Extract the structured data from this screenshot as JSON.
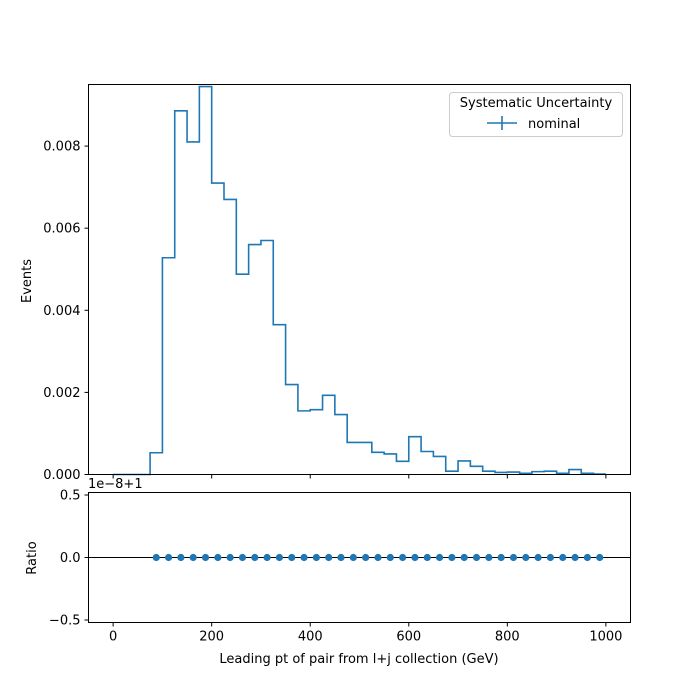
{
  "chart_data": [
    {
      "type": "step",
      "xlabel": "",
      "ylabel": "Events",
      "xlim": [
        -50,
        1050
      ],
      "ylim": [
        0,
        0.0095
      ],
      "x_ticks": [
        0,
        200,
        400,
        600,
        800,
        1000
      ],
      "y_ticks": [
        "0.000",
        "0.002",
        "0.004",
        "0.006",
        "0.008"
      ],
      "y_tick_values": [
        0,
        0.002,
        0.004,
        0.006,
        0.008
      ],
      "bin_width": 25,
      "bin_edges_start": 0,
      "series": [
        {
          "name": "nominal",
          "values": [
            0,
            0,
            0,
            0.00053,
            0.00528,
            0.00886,
            0.0081,
            0.00945,
            0.0071,
            0.0067,
            0.00488,
            0.0056,
            0.0057,
            0.00365,
            0.00219,
            0.00155,
            0.00158,
            0.00193,
            0.00146,
            0.00078,
            0.00078,
            0.00054,
            0.0005,
            0.00032,
            0.00092,
            0.00056,
            0.00044,
            8e-05,
            0.00033,
            0.0002,
            8e-05,
            5e-05,
            6e-05,
            3e-05,
            7e-05,
            8e-05,
            3e-05,
            0.00012,
            3e-05,
            1e-05
          ]
        }
      ],
      "legend": {
        "title": "Systematic Uncertainty",
        "entries": [
          "nominal"
        ],
        "position": "top-right"
      },
      "color": "#1f77b4"
    },
    {
      "type": "scatter",
      "xlabel": "Leading pt of pair from l+j collection (GeV)",
      "ylabel": "Ratio",
      "offset_label": "1e−8+1",
      "xlim": [
        -50,
        1050
      ],
      "ylim": [
        -0.52,
        0.52
      ],
      "x_ticks": [
        0,
        200,
        400,
        600,
        800,
        1000
      ],
      "y_ticks": [
        "−0.5",
        "0.0",
        "0.5"
      ],
      "y_tick_values": [
        -0.5,
        0,
        0.5
      ],
      "reference_line": 0,
      "x": [
        87.5,
        112.5,
        137.5,
        162.5,
        187.5,
        212.5,
        237.5,
        262.5,
        287.5,
        312.5,
        337.5,
        362.5,
        387.5,
        412.5,
        437.5,
        462.5,
        487.5,
        512.5,
        537.5,
        562.5,
        587.5,
        612.5,
        637.5,
        662.5,
        687.5,
        712.5,
        737.5,
        762.5,
        787.5,
        812.5,
        837.5,
        862.5,
        887.5,
        912.5,
        937.5,
        962.5,
        987.5
      ],
      "y": [
        0,
        0,
        0,
        0,
        0,
        0,
        0,
        0,
        0,
        0,
        0,
        0,
        0,
        0,
        0,
        0,
        0,
        0,
        0,
        0,
        0,
        0,
        0,
        0,
        0,
        0,
        0,
        0,
        0,
        0,
        0,
        0,
        0,
        0,
        0,
        0,
        0
      ],
      "color": "#1f77b4"
    }
  ]
}
